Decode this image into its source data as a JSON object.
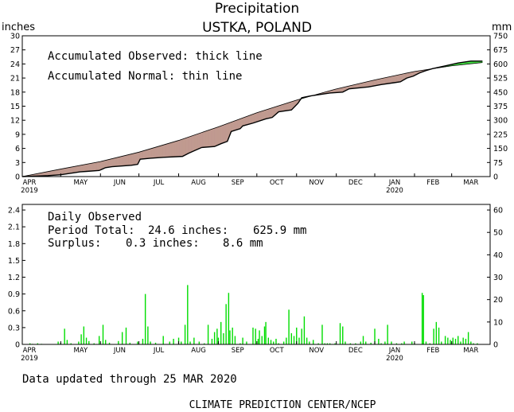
{
  "header": {
    "title": "Precipitation",
    "location": "USTKA, POLAND",
    "left_unit": "inches",
    "right_unit": "mm"
  },
  "colors": {
    "deficit_fill": "#c09a90",
    "surplus_fill": "#44dd44",
    "daily_bar": "#00dd00",
    "axis": "#000000"
  },
  "chart_data": [
    {
      "type": "line",
      "name": "accumulated",
      "notes": [
        "Accumulated Observed: thick line",
        "Accumulated Normal: thin line"
      ],
      "ylim_inches": [
        0,
        30
      ],
      "ylim_mm": [
        0,
        750
      ],
      "yticks_inches": [
        0,
        3,
        6,
        9,
        12,
        15,
        18,
        21,
        24,
        27,
        30
      ],
      "yticks_mm": [
        0,
        75,
        150,
        225,
        300,
        375,
        450,
        525,
        600,
        675,
        750
      ],
      "x_range_days": [
        0,
        365
      ],
      "month_labels": [
        "APR",
        "MAY",
        "JUN",
        "JUL",
        "AUG",
        "SEP",
        "OCT",
        "NOV",
        "DEC",
        "JAN",
        "FEB",
        "MAR"
      ],
      "year_labels": [
        {
          "text": "2019",
          "month": "APR"
        },
        {
          "text": "2020",
          "month": "JAN"
        }
      ],
      "normal": {
        "day": [
          0,
          30,
          61,
          91,
          122,
          153,
          183,
          214,
          244,
          275,
          306,
          335,
          359
        ],
        "inches": [
          0,
          1.6,
          3.2,
          5.2,
          7.7,
          10.6,
          13.6,
          16.3,
          18.6,
          20.6,
          22.4,
          23.6,
          24.3
        ]
      },
      "observed": {
        "day": [
          0,
          10,
          20,
          30,
          40,
          45,
          50,
          60,
          65,
          70,
          85,
          90,
          92,
          100,
          110,
          125,
          130,
          140,
          150,
          155,
          160,
          163,
          170,
          172,
          180,
          190,
          195,
          200,
          210,
          215,
          218,
          225,
          240,
          250,
          255,
          270,
          280,
          290,
          295,
          300,
          305,
          310,
          315,
          320,
          330,
          340,
          350,
          359
        ],
        "inches": [
          0,
          0.1,
          0.2,
          0.4,
          0.8,
          1.0,
          1.1,
          1.3,
          1.9,
          2.1,
          2.4,
          2.6,
          3.7,
          3.9,
          4.1,
          4.3,
          5.0,
          6.2,
          6.4,
          7.0,
          7.5,
          9.6,
          10.2,
          10.8,
          11.4,
          12.3,
          12.6,
          13.8,
          14.2,
          15.6,
          16.8,
          17.2,
          17.8,
          18.0,
          18.7,
          19.1,
          19.6,
          20.0,
          20.2,
          21.0,
          21.4,
          22.1,
          22.6,
          23.0,
          23.6,
          24.2,
          24.6,
          24.6
        ]
      }
    },
    {
      "type": "bar",
      "name": "daily",
      "title": "Daily Observed",
      "summary": [
        {
          "label": "Period Total:",
          "inches": "24.6 inches:",
          "mm": "625.9 mm"
        },
        {
          "label": "Surplus:",
          "inches": "0.3 inches:",
          "mm": "8.6 mm"
        }
      ],
      "ylim_inches": [
        0,
        2.5
      ],
      "ylim_mm": [
        0,
        62.5
      ],
      "yticks_inches": [
        "0",
        "0.3",
        "0.6",
        "0.9",
        "1.2",
        "1.5",
        "1.8",
        "2.1",
        "2.4"
      ],
      "yticks_mm": [
        "0",
        "10",
        "20",
        "30",
        "40",
        "50",
        "60"
      ],
      "bars": [
        [
          6,
          0.02
        ],
        [
          8,
          0.01
        ],
        [
          12,
          0.02
        ],
        [
          15,
          0.01
        ],
        [
          28,
          0.05
        ],
        [
          30,
          0.03
        ],
        [
          33,
          0.28
        ],
        [
          35,
          0.08
        ],
        [
          38,
          0.02
        ],
        [
          44,
          0.05
        ],
        [
          46,
          0.18
        ],
        [
          48,
          0.32
        ],
        [
          50,
          0.12
        ],
        [
          52,
          0.06
        ],
        [
          56,
          0.02
        ],
        [
          60,
          0.15
        ],
        [
          63,
          0.35
        ],
        [
          65,
          0.08
        ],
        [
          68,
          0.03
        ],
        [
          75,
          0.06
        ],
        [
          78,
          0.22
        ],
        [
          81,
          0.3
        ],
        [
          84,
          0.03
        ],
        [
          90,
          0.05
        ],
        [
          94,
          0.1
        ],
        [
          96,
          0.9
        ],
        [
          98,
          0.32
        ],
        [
          100,
          0.05
        ],
        [
          104,
          0.03
        ],
        [
          110,
          0.15
        ],
        [
          115,
          0.05
        ],
        [
          118,
          0.1
        ],
        [
          122,
          0.12
        ],
        [
          124,
          0.05
        ],
        [
          127,
          0.35
        ],
        [
          129,
          1.06
        ],
        [
          131,
          0.05
        ],
        [
          134,
          0.12
        ],
        [
          138,
          0.05
        ],
        [
          142,
          0.02
        ],
        [
          145,
          0.35
        ],
        [
          148,
          0.1
        ],
        [
          150,
          0.22
        ],
        [
          152,
          0.28
        ],
        [
          153,
          0.12
        ],
        [
          155,
          0.4
        ],
        [
          157,
          0.2
        ],
        [
          159,
          0.72
        ],
        [
          161,
          0.92
        ],
        [
          162,
          0.25
        ],
        [
          164,
          0.3
        ],
        [
          166,
          0.15
        ],
        [
          170,
          0.02
        ],
        [
          172,
          0.12
        ],
        [
          175,
          0.05
        ],
        [
          180,
          0.3
        ],
        [
          182,
          0.28
        ],
        [
          184,
          0.1
        ],
        [
          185,
          0.25
        ],
        [
          187,
          0.15
        ],
        [
          189,
          0.32
        ],
        [
          190,
          0.4
        ],
        [
          192,
          0.12
        ],
        [
          194,
          0.08
        ],
        [
          196,
          0.05
        ],
        [
          198,
          0.1
        ],
        [
          200,
          0.02
        ],
        [
          204,
          0.05
        ],
        [
          206,
          0.12
        ],
        [
          208,
          0.62
        ],
        [
          210,
          0.2
        ],
        [
          212,
          0.15
        ],
        [
          214,
          0.3
        ],
        [
          216,
          0.12
        ],
        [
          218,
          0.28
        ],
        [
          220,
          0.5
        ],
        [
          222,
          0.12
        ],
        [
          224,
          0.05
        ],
        [
          227,
          0.08
        ],
        [
          231,
          0.02
        ],
        [
          234,
          0.35
        ],
        [
          236,
          0.02
        ],
        [
          238,
          0.02
        ],
        [
          240,
          0.02
        ],
        [
          244,
          0.02
        ],
        [
          248,
          0.38
        ],
        [
          250,
          0.32
        ],
        [
          252,
          0.05
        ],
        [
          256,
          0.02
        ],
        [
          260,
          0.02
        ],
        [
          264,
          0.05
        ],
        [
          266,
          0.15
        ],
        [
          268,
          0.05
        ],
        [
          272,
          0.03
        ],
        [
          275,
          0.28
        ],
        [
          278,
          0.1
        ],
        [
          280,
          0.02
        ],
        [
          283,
          0.05
        ],
        [
          285,
          0.35
        ],
        [
          288,
          0.05
        ],
        [
          292,
          0.02
        ],
        [
          296,
          0.02
        ],
        [
          298,
          0.05
        ],
        [
          304,
          0.05
        ],
        [
          306,
          0.02
        ],
        [
          312,
          0.92
        ],
        [
          313,
          0.88
        ],
        [
          315,
          0.05
        ],
        [
          318,
          0.02
        ],
        [
          321,
          0.28
        ],
        [
          323,
          0.4
        ],
        [
          325,
          0.3
        ],
        [
          327,
          0.05
        ],
        [
          330,
          0.15
        ],
        [
          332,
          0.12
        ],
        [
          334,
          0.08
        ],
        [
          336,
          0.12
        ],
        [
          338,
          0.1
        ],
        [
          340,
          0.15
        ],
        [
          342,
          0.05
        ],
        [
          344,
          0.12
        ],
        [
          346,
          0.1
        ],
        [
          348,
          0.22
        ],
        [
          350,
          0.05
        ],
        [
          352,
          0.02
        ],
        [
          355,
          0.02
        ]
      ]
    }
  ],
  "footer": {
    "updated": "Data updated through 25 MAR 2020",
    "credit": "CLIMATE PREDICTION CENTER/NCEP"
  }
}
